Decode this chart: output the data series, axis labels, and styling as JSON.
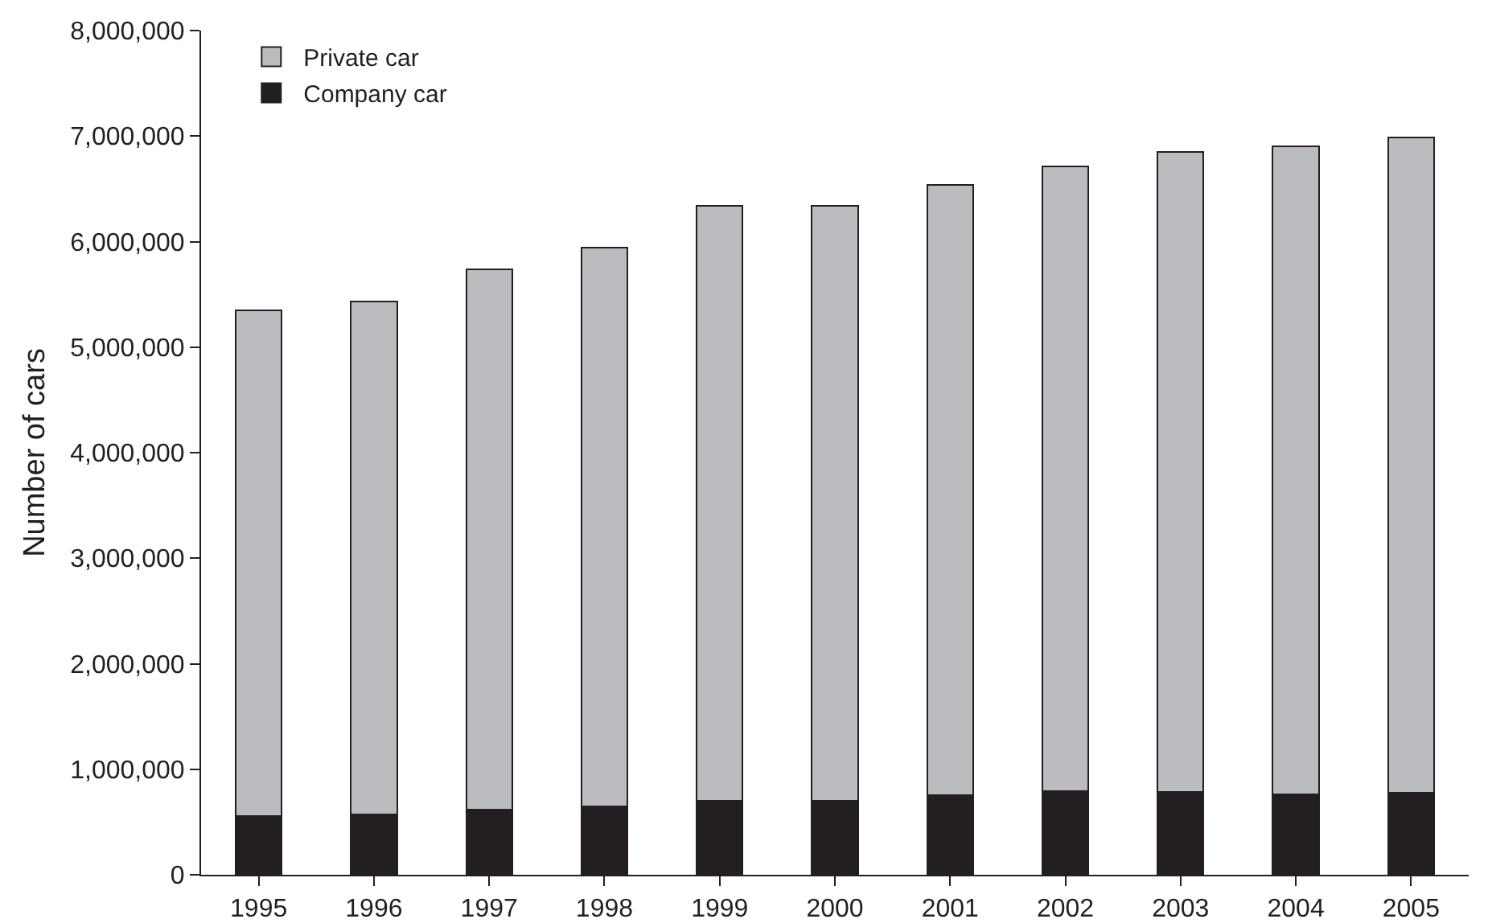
{
  "chart_data": {
    "type": "bar",
    "stacked": true,
    "ylabel": "Number of cars",
    "categories": [
      "1995",
      "1996",
      "1997",
      "1998",
      "1999",
      "2000",
      "2001",
      "2002",
      "2003",
      "2004",
      "2005"
    ],
    "series": [
      {
        "name": "Company car",
        "color": "#231f20",
        "values": [
          555000,
          570000,
          615000,
          645000,
          700000,
          700000,
          755000,
          790000,
          785000,
          760000,
          775000
        ]
      },
      {
        "name": "Private car",
        "color": "#bbbcc0",
        "values": [
          4795000,
          4865000,
          5120000,
          5295000,
          5640000,
          5640000,
          5785000,
          5920000,
          6065000,
          6140000,
          6215000
        ]
      }
    ],
    "ylim": [
      0,
      8000000
    ],
    "yticks": [
      {
        "value": 0,
        "label": "0"
      },
      {
        "value": 1000000,
        "label": "1,000,000"
      },
      {
        "value": 2000000,
        "label": "2,000,000"
      },
      {
        "value": 3000000,
        "label": "3,000,000"
      },
      {
        "value": 4000000,
        "label": "4,000,000"
      },
      {
        "value": 5000000,
        "label": "5,000,000"
      },
      {
        "value": 6000000,
        "label": "6,000,000"
      },
      {
        "value": 7000000,
        "label": "7,000,000"
      },
      {
        "value": 8000000,
        "label": "8,000,000"
      }
    ],
    "grid": false,
    "legend": "top left"
  }
}
